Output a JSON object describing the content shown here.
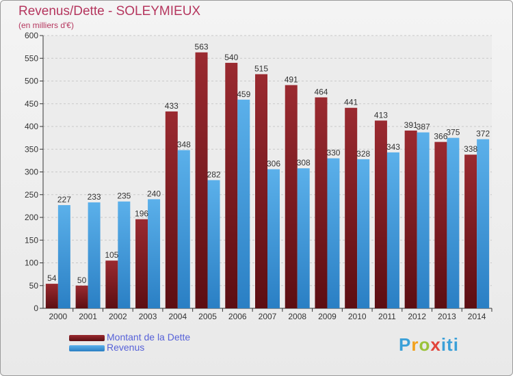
{
  "chart_data": {
    "type": "bar",
    "title": "Revenus/Dette - SOLEYMIEUX",
    "subtitle": "(en milliers d'€)",
    "categories": [
      "2000",
      "2001",
      "2002",
      "2003",
      "2004",
      "2005",
      "2006",
      "2007",
      "2008",
      "2009",
      "2010",
      "2011",
      "2012",
      "2013",
      "2014"
    ],
    "series": [
      {
        "name": "Montant de la Dette",
        "color": "#8b1c24",
        "values": [
          54,
          50,
          105,
          196,
          433,
          563,
          540,
          515,
          491,
          464,
          441,
          413,
          391,
          366,
          338
        ]
      },
      {
        "name": "Revenus",
        "color": "#3a95d8",
        "values": [
          227,
          233,
          235,
          240,
          348,
          282,
          459,
          306,
          308,
          330,
          328,
          343,
          387,
          375,
          372
        ]
      }
    ],
    "ylim": [
      0,
      600
    ],
    "yticks": [
      "0",
      "50",
      "100",
      "150",
      "200",
      "250",
      "300",
      "350",
      "400",
      "450",
      "500",
      "550",
      "600"
    ],
    "grid": true,
    "legend_position": "bottom-left"
  },
  "logo": {
    "text": "Proxiti",
    "parts": [
      "P",
      "r",
      "o",
      "x",
      "iti"
    ]
  }
}
